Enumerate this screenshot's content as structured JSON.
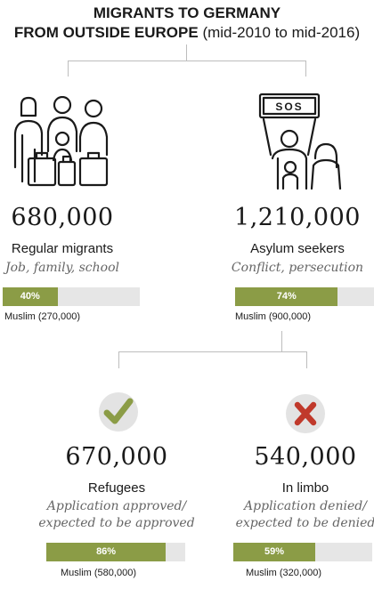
{
  "title": {
    "line1": "MIGRANTS TO GERMANY",
    "line2_bold": "FROM OUTSIDE EUROPE",
    "line2_light": "(mid-2010 to mid-2016)"
  },
  "groups": {
    "regular": {
      "count": "680,000",
      "label": "Regular migrants",
      "sub": "Job, family, school",
      "muslim_pct": 40,
      "muslim_pct_label": "40%",
      "muslim_label": "Muslim (270,000)"
    },
    "asylum": {
      "count": "1,210,000",
      "label": "Asylum seekers",
      "sub": "Conflict, persecution",
      "sign_text": "SOS",
      "muslim_pct": 74,
      "muslim_pct_label": "74%",
      "muslim_label": "Muslim (900,000)"
    },
    "refugees": {
      "count": "670,000",
      "label": "Refugees",
      "sub_line1": "Application approved/",
      "sub_line2": "expected to be approved",
      "muslim_pct": 86,
      "muslim_pct_label": "86%",
      "muslim_label": "Muslim (580,000)"
    },
    "limbo": {
      "count": "540,000",
      "label": "In limbo",
      "sub_line1": "Application denied/",
      "sub_line2": "expected to be denied",
      "muslim_pct": 59,
      "muslim_pct_label": "59%",
      "muslim_label": "Muslim (320,000)"
    }
  },
  "colors": {
    "bar_fill": "#8b9c46",
    "bar_bg": "#e6e6e6",
    "check": "#8b9c46",
    "cross": "#c0392b",
    "icon_circle": "#e3e3e3"
  },
  "icons": {
    "regular": "family-with-luggage-icon",
    "asylum": "people-with-sos-sign-icon",
    "refugees": "check-icon",
    "limbo": "cross-icon"
  }
}
